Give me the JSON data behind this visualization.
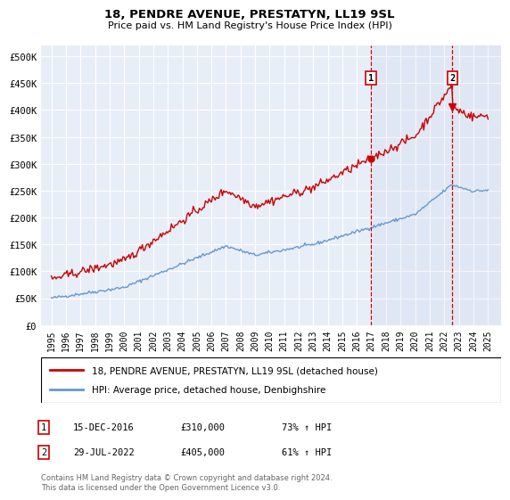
{
  "title": "18, PENDRE AVENUE, PRESTATYN, LL19 9SL",
  "subtitle": "Price paid vs. HM Land Registry's House Price Index (HPI)",
  "legend_line1": "18, PENDRE AVENUE, PRESTATYN, LL19 9SL (detached house)",
  "legend_line2": "HPI: Average price, detached house, Denbighshire",
  "annotation1_date": "15-DEC-2016",
  "annotation1_price": 310000,
  "annotation1_pct": "73% ↑ HPI",
  "annotation2_date": "29-JUL-2022",
  "annotation2_price": 405000,
  "annotation2_pct": "61% ↑ HPI",
  "footnote": "Contains HM Land Registry data © Crown copyright and database right 2024.\nThis data is licensed under the Open Government Licence v3.0.",
  "ylim": [
    0,
    520000
  ],
  "yticks": [
    0,
    50000,
    100000,
    150000,
    200000,
    250000,
    300000,
    350000,
    400000,
    450000,
    500000
  ],
  "red_color": "#cc0000",
  "blue_color": "#6699cc",
  "bg_color": "#e8eef8",
  "grid_color": "#ffffff",
  "vline_color": "#cc0000",
  "box_color": "#cc0000"
}
